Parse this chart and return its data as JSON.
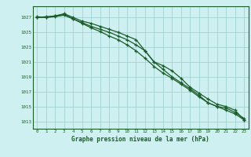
{
  "x": [
    0,
    1,
    2,
    3,
    4,
    5,
    6,
    7,
    8,
    9,
    10,
    11,
    12,
    13,
    14,
    15,
    16,
    17,
    18,
    19,
    20,
    21,
    22,
    23
  ],
  "line1": [
    1027.0,
    1027.1,
    1027.2,
    1027.4,
    1026.8,
    1026.3,
    1025.8,
    1025.4,
    1025.0,
    1024.5,
    1024.0,
    1023.3,
    1022.5,
    1021.0,
    1020.0,
    1019.0,
    1018.2,
    1017.4,
    1016.5,
    1015.5,
    1015.0,
    1014.5,
    1014.0,
    1013.2
  ],
  "line2": [
    1027.0,
    1027.0,
    1027.2,
    1027.5,
    1027.0,
    1026.5,
    1026.2,
    1025.8,
    1025.4,
    1025.0,
    1024.5,
    1024.0,
    1022.5,
    1021.0,
    1020.5,
    1019.8,
    1018.8,
    1017.6,
    1016.8,
    1016.0,
    1015.3,
    1015.0,
    1014.5,
    1013.2
  ],
  "line3": [
    1027.1,
    1027.0,
    1027.1,
    1027.3,
    1026.8,
    1026.2,
    1025.6,
    1025.1,
    1024.5,
    1024.0,
    1023.3,
    1022.5,
    1021.5,
    1020.4,
    1019.5,
    1018.8,
    1018.0,
    1017.2,
    1016.3,
    1015.5,
    1015.0,
    1014.8,
    1014.2,
    1013.4
  ],
  "bg_color": "#cff0f0",
  "grid_color": "#99cccc",
  "line_color": "#1a5c2a",
  "ylabel_values": [
    1013,
    1015,
    1017,
    1019,
    1021,
    1023,
    1025,
    1027
  ],
  "xlabel": "Graphe pression niveau de la mer (hPa)",
  "ymin": 1012.0,
  "ymax": 1028.5,
  "xmin": -0.5,
  "xmax": 23.5
}
